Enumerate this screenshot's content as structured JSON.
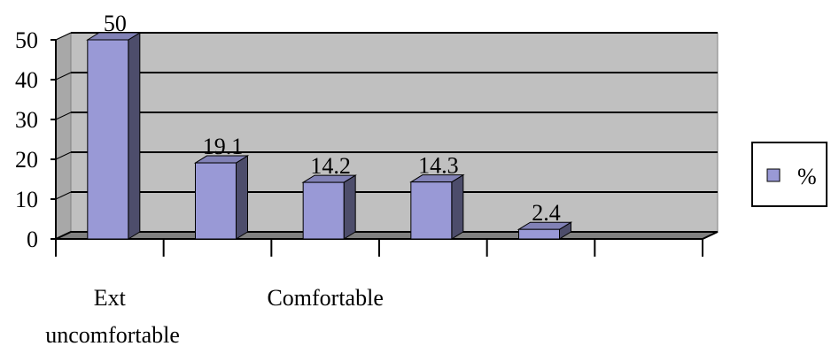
{
  "chart_data": {
    "type": "bar3d",
    "categories": [
      "Ext uncomfortable",
      null,
      "Comfortable",
      null,
      null,
      null
    ],
    "series": [
      {
        "name": "%",
        "color": "#9999d6",
        "values": [
          50,
          19.1,
          14.2,
          14.3,
          2.4,
          null
        ]
      }
    ],
    "ylim": [
      0,
      50
    ],
    "yticks": [
      0,
      10,
      20,
      30,
      40,
      50
    ],
    "grid": true,
    "legend": "right"
  }
}
